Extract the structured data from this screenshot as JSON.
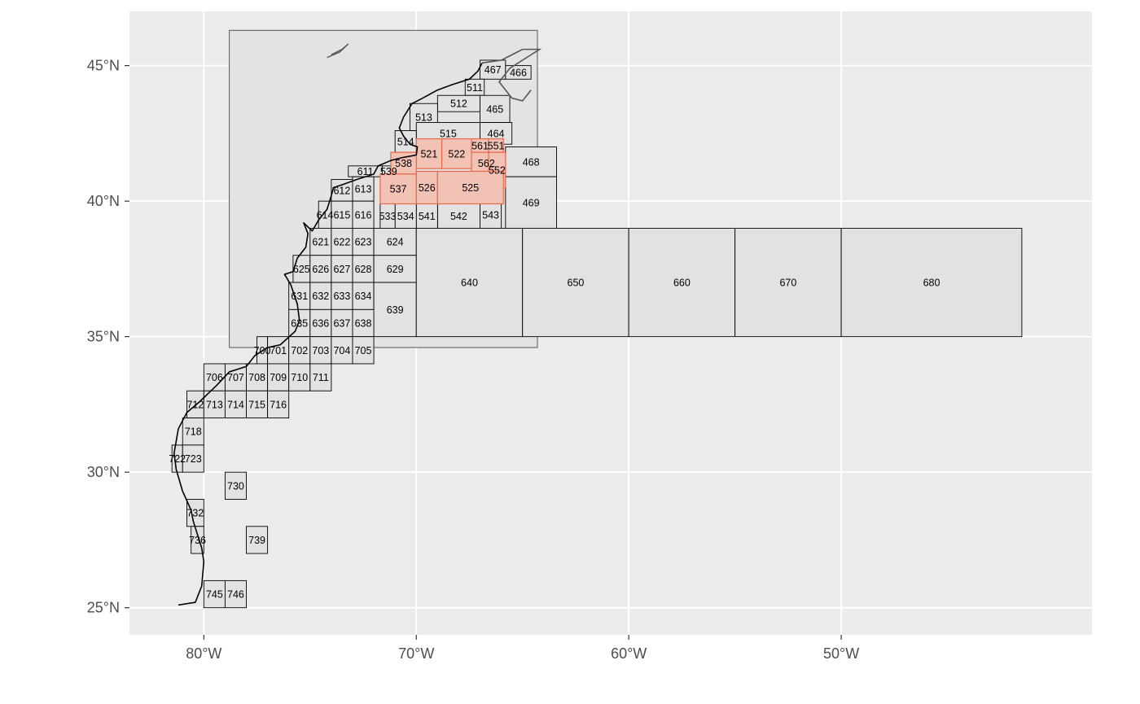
{
  "map": {
    "colors": {
      "panel_bg": "#ebebeb",
      "grid": "#ffffff",
      "study_bbox_fill": "#e3e3e3",
      "study_bbox_stroke": "#555555",
      "area_fill": "#e2e2e2",
      "area_stroke": "#000000",
      "highlight_fill": "#f2c3b4",
      "highlight_stroke": "#e8694a",
      "coast": "#000000",
      "canada_coast": "#555555"
    },
    "axes": {
      "lon_range": [
        -83.5,
        -38.2
      ],
      "lat_range": [
        24.0,
        47.0
      ],
      "x_ticks": [
        {
          "value": -80,
          "label": "80°W"
        },
        {
          "value": -70,
          "label": "70°W"
        },
        {
          "value": -60,
          "label": "60°W"
        },
        {
          "value": -50,
          "label": "50°W"
        }
      ],
      "y_ticks": [
        {
          "value": 45,
          "label": "45°N"
        },
        {
          "value": 40,
          "label": "40°N"
        },
        {
          "value": 35,
          "label": "35°N"
        },
        {
          "value": 30,
          "label": "30°N"
        },
        {
          "value": 25,
          "label": "25°N"
        }
      ]
    },
    "study_bbox": {
      "lon": [
        -78.8,
        -64.3
      ],
      "lat": [
        34.6,
        46.3
      ]
    },
    "highlighted_areas": [
      "521",
      "522",
      "525",
      "526",
      "537",
      "538",
      "551",
      "552",
      "561",
      "562"
    ],
    "stat_areas": [
      {
        "id": "467",
        "lon": [
          -67.0,
          -65.8
        ],
        "lat": [
          44.5,
          45.2
        ]
      },
      {
        "id": "466",
        "lon": [
          -65.8,
          -64.6
        ],
        "lat": [
          44.5,
          45.0
        ]
      },
      {
        "id": "511",
        "lon": [
          -67.7,
          -66.8
        ],
        "lat": [
          43.9,
          44.5
        ]
      },
      {
        "id": "512",
        "lon": [
          -69.0,
          -67.0
        ],
        "lat": [
          43.3,
          43.9
        ]
      },
      {
        "id": "513",
        "lon": [
          -70.3,
          -69.0
        ],
        "lat": [
          42.6,
          43.6
        ]
      },
      {
        "id": "465",
        "lon": [
          -67.0,
          -65.6
        ],
        "lat": [
          42.9,
          43.9
        ]
      },
      {
        "id": "515",
        "lon": [
          -70.0,
          -67.0
        ],
        "lat": [
          42.1,
          42.9
        ]
      },
      {
        "id": "464",
        "lon": [
          -67.0,
          -65.5
        ],
        "lat": [
          42.1,
          42.9
        ]
      },
      {
        "id": "514",
        "lon": [
          -71.0,
          -70.0
        ],
        "lat": [
          41.8,
          42.6
        ]
      },
      {
        "id": "468",
        "lon": [
          -65.8,
          -63.4
        ],
        "lat": [
          40.9,
          42.0
        ]
      },
      {
        "id": "469",
        "lon": [
          -65.8,
          -63.4
        ],
        "lat": [
          39.0,
          40.9
        ]
      },
      {
        "id": "543",
        "lon": [
          -67.0,
          -66.0
        ],
        "lat": [
          39.0,
          40.0
        ]
      },
      {
        "id": "542",
        "lon": [
          -69.0,
          -67.0
        ],
        "lat": [
          39.0,
          39.9
        ]
      },
      {
        "id": "541",
        "lon": [
          -70.0,
          -69.0
        ],
        "lat": [
          39.0,
          39.9
        ]
      },
      {
        "id": "534",
        "lon": [
          -71.0,
          -70.0
        ],
        "lat": [
          39.0,
          39.9
        ]
      },
      {
        "id": "533",
        "lon": [
          -71.7,
          -71.0
        ],
        "lat": [
          39.0,
          39.9
        ]
      },
      {
        "id": "539",
        "lon": [
          -71.6,
          -71.0
        ],
        "lat": [
          40.9,
          41.3
        ]
      },
      {
        "id": "611",
        "lon": [
          -73.2,
          -71.6
        ],
        "lat": [
          40.9,
          41.3
        ]
      },
      {
        "id": "612",
        "lon": [
          -74.0,
          -73.0
        ],
        "lat": [
          40.0,
          40.8
        ]
      },
      {
        "id": "613",
        "lon": [
          -73.0,
          -72.0
        ],
        "lat": [
          40.0,
          40.9
        ]
      },
      {
        "id": "614",
        "lon": [
          -74.6,
          -74.0
        ],
        "lat": [
          39.0,
          40.0
        ]
      },
      {
        "id": "615",
        "lon": [
          -74.0,
          -73.0
        ],
        "lat": [
          39.0,
          40.0
        ]
      },
      {
        "id": "616",
        "lon": [
          -73.0,
          -72.0
        ],
        "lat": [
          39.0,
          40.0
        ]
      },
      {
        "id": "621",
        "lon": [
          -75.0,
          -74.0
        ],
        "lat": [
          38.0,
          39.0
        ]
      },
      {
        "id": "622",
        "lon": [
          -74.0,
          -73.0
        ],
        "lat": [
          38.0,
          39.0
        ]
      },
      {
        "id": "623",
        "lon": [
          -73.0,
          -72.0
        ],
        "lat": [
          38.0,
          39.0
        ]
      },
      {
        "id": "624",
        "lon": [
          -72.0,
          -70.0
        ],
        "lat": [
          38.0,
          39.0
        ]
      },
      {
        "id": "625",
        "lon": [
          -75.8,
          -75.0
        ],
        "lat": [
          37.0,
          38.0
        ]
      },
      {
        "id": "626",
        "lon": [
          -75.0,
          -74.0
        ],
        "lat": [
          37.0,
          38.0
        ]
      },
      {
        "id": "627",
        "lon": [
          -74.0,
          -73.0
        ],
        "lat": [
          37.0,
          38.0
        ]
      },
      {
        "id": "628",
        "lon": [
          -73.0,
          -72.0
        ],
        "lat": [
          37.0,
          38.0
        ]
      },
      {
        "id": "629",
        "lon": [
          -72.0,
          -70.0
        ],
        "lat": [
          37.0,
          38.0
        ]
      },
      {
        "id": "631",
        "lon": [
          -76.0,
          -75.0
        ],
        "lat": [
          36.0,
          37.0
        ]
      },
      {
        "id": "632",
        "lon": [
          -75.0,
          -74.0
        ],
        "lat": [
          36.0,
          37.0
        ]
      },
      {
        "id": "633",
        "lon": [
          -74.0,
          -73.0
        ],
        "lat": [
          36.0,
          37.0
        ]
      },
      {
        "id": "634",
        "lon": [
          -73.0,
          -72.0
        ],
        "lat": [
          36.0,
          37.0
        ]
      },
      {
        "id": "639",
        "lon": [
          -72.0,
          -70.0
        ],
        "lat": [
          35.0,
          37.0
        ]
      },
      {
        "id": "635",
        "lon": [
          -76.0,
          -75.0
        ],
        "lat": [
          35.0,
          36.0
        ]
      },
      {
        "id": "636",
        "lon": [
          -75.0,
          -74.0
        ],
        "lat": [
          35.0,
          36.0
        ]
      },
      {
        "id": "637",
        "lon": [
          -74.0,
          -73.0
        ],
        "lat": [
          35.0,
          36.0
        ]
      },
      {
        "id": "638",
        "lon": [
          -73.0,
          -72.0
        ],
        "lat": [
          35.0,
          36.0
        ]
      },
      {
        "id": "640",
        "lon": [
          -70.0,
          -65.0
        ],
        "lat": [
          35.0,
          39.0
        ]
      },
      {
        "id": "650",
        "lon": [
          -65.0,
          -60.0
        ],
        "lat": [
          35.0,
          39.0
        ]
      },
      {
        "id": "660",
        "lon": [
          -60.0,
          -55.0
        ],
        "lat": [
          35.0,
          39.0
        ]
      },
      {
        "id": "670",
        "lon": [
          -55.0,
          -50.0
        ],
        "lat": [
          35.0,
          39.0
        ]
      },
      {
        "id": "680",
        "lon": [
          -50.0,
          -41.5
        ],
        "lat": [
          35.0,
          39.0
        ]
      },
      {
        "id": "700",
        "lon": [
          -77.5,
          -77.0
        ],
        "lat": [
          34.0,
          35.0
        ]
      },
      {
        "id": "701",
        "lon": [
          -77.0,
          -76.0
        ],
        "lat": [
          34.0,
          35.0
        ]
      },
      {
        "id": "702",
        "lon": [
          -76.0,
          -75.0
        ],
        "lat": [
          34.0,
          35.0
        ]
      },
      {
        "id": "703",
        "lon": [
          -75.0,
          -74.0
        ],
        "lat": [
          34.0,
          35.0
        ]
      },
      {
        "id": "704",
        "lon": [
          -74.0,
          -73.0
        ],
        "lat": [
          34.0,
          35.0
        ]
      },
      {
        "id": "705",
        "lon": [
          -73.0,
          -72.0
        ],
        "lat": [
          34.0,
          35.0
        ]
      },
      {
        "id": "706",
        "lon": [
          -80.0,
          -79.0
        ],
        "lat": [
          33.0,
          34.0
        ]
      },
      {
        "id": "707",
        "lon": [
          -79.0,
          -78.0
        ],
        "lat": [
          33.0,
          34.0
        ]
      },
      {
        "id": "708",
        "lon": [
          -78.0,
          -77.0
        ],
        "lat": [
          33.0,
          34.0
        ]
      },
      {
        "id": "709",
        "lon": [
          -77.0,
          -76.0
        ],
        "lat": [
          33.0,
          34.0
        ]
      },
      {
        "id": "710",
        "lon": [
          -76.0,
          -75.0
        ],
        "lat": [
          33.0,
          34.0
        ]
      },
      {
        "id": "711",
        "lon": [
          -75.0,
          -74.0
        ],
        "lat": [
          33.0,
          34.0
        ]
      },
      {
        "id": "712",
        "lon": [
          -80.8,
          -80.0
        ],
        "lat": [
          32.0,
          33.0
        ]
      },
      {
        "id": "713",
        "lon": [
          -80.0,
          -79.0
        ],
        "lat": [
          32.0,
          33.0
        ]
      },
      {
        "id": "714",
        "lon": [
          -79.0,
          -78.0
        ],
        "lat": [
          32.0,
          33.0
        ]
      },
      {
        "id": "715",
        "lon": [
          -78.0,
          -77.0
        ],
        "lat": [
          32.0,
          33.0
        ]
      },
      {
        "id": "716",
        "lon": [
          -77.0,
          -76.0
        ],
        "lat": [
          32.0,
          33.0
        ]
      },
      {
        "id": "718",
        "lon": [
          -81.0,
          -80.0
        ],
        "lat": [
          31.0,
          32.0
        ]
      },
      {
        "id": "722",
        "lon": [
          -81.5,
          -81.0
        ],
        "lat": [
          30.0,
          31.0
        ]
      },
      {
        "id": "723",
        "lon": [
          -81.0,
          -80.0
        ],
        "lat": [
          30.0,
          31.0
        ]
      },
      {
        "id": "730",
        "lon": [
          -79.0,
          -78.0
        ],
        "lat": [
          29.0,
          30.0
        ]
      },
      {
        "id": "732",
        "lon": [
          -80.8,
          -80.0
        ],
        "lat": [
          28.0,
          29.0
        ]
      },
      {
        "id": "736",
        "lon": [
          -80.6,
          -80.0
        ],
        "lat": [
          27.0,
          28.0
        ]
      },
      {
        "id": "739",
        "lon": [
          -78.0,
          -77.0
        ],
        "lat": [
          27.0,
          28.0
        ]
      },
      {
        "id": "745",
        "lon": [
          -80.0,
          -79.0
        ],
        "lat": [
          25.0,
          26.0
        ]
      },
      {
        "id": "746",
        "lon": [
          -79.0,
          -78.0
        ],
        "lat": [
          25.0,
          26.0
        ]
      },
      {
        "id": "521",
        "lon": [
          -70.0,
          -68.8
        ],
        "lat": [
          41.2,
          42.3
        ]
      },
      {
        "id": "522",
        "lon": [
          -68.8,
          -67.4
        ],
        "lat": [
          41.2,
          42.3
        ]
      },
      {
        "id": "561",
        "lon": [
          -67.4,
          -66.6
        ],
        "lat": [
          41.8,
          42.3
        ]
      },
      {
        "id": "551",
        "lon": [
          -66.6,
          -65.9
        ],
        "lat": [
          41.8,
          42.3
        ]
      },
      {
        "id": "538",
        "lon": [
          -71.2,
          -70.0
        ],
        "lat": [
          41.0,
          41.8
        ]
      },
      {
        "id": "562",
        "lon": [
          -67.4,
          -66.0
        ],
        "lat": [
          41.0,
          41.8
        ]
      },
      {
        "id": "552",
        "lon": [
          -66.6,
          -65.8
        ],
        "lat": [
          40.5,
          41.8
        ]
      },
      {
        "id": "537",
        "lon": [
          -71.7,
          -70.0
        ],
        "lat": [
          39.9,
          41.0
        ]
      },
      {
        "id": "526",
        "lon": [
          -70.0,
          -69.0
        ],
        "lat": [
          39.9,
          41.1
        ]
      },
      {
        "id": "525",
        "lon": [
          -69.0,
          -65.9
        ],
        "lat": [
          39.9,
          41.1
        ]
      }
    ]
  }
}
